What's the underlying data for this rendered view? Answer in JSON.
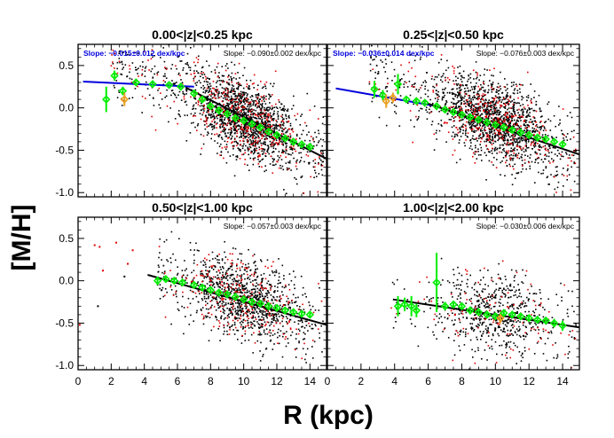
{
  "figure": {
    "ylabel": "[M/H]",
    "xlabel": "R (kpc)",
    "colors": {
      "black_points": "#000000",
      "red_points": "#e00000",
      "green_bins": "#00ee00",
      "orange_bins": "#e8a020",
      "blue_fit": "#0000dd",
      "black_fit": "#000000"
    }
  },
  "chart_data": [
    {
      "type": "scatter",
      "title": "0.00<|z|<0.25 kpc",
      "slope_labels": [
        {
          "text": "Slope: −0.015±0.012 dex/kpc",
          "color": "#0000dd"
        },
        {
          "text": "Slope: −0.090±0.002 dex/kpc",
          "color": "#000000"
        }
      ],
      "xlim": [
        0,
        15
      ],
      "ylim": [
        -1.05,
        0.75
      ],
      "xticks": [
        0,
        2,
        4,
        6,
        8,
        10,
        12,
        14
      ],
      "yticks": [
        -1.0,
        -0.5,
        0.0,
        0.5
      ],
      "show_xticklabels": false,
      "show_yticklabels": true,
      "cloud": {
        "xmin": 2.0,
        "xmax": 14.8,
        "center": 10.0,
        "ymean_at_center": -0.12,
        "slope": -0.09,
        "scatter": 0.22,
        "n_black": 1700,
        "n_red": 420
      },
      "fits": [
        {
          "color": "#0000dd",
          "points": [
            [
              0.3,
              0.31
            ],
            [
              7.0,
              0.25
            ]
          ]
        },
        {
          "color": "#000000",
          "points": [
            [
              6.5,
              0.24
            ],
            [
              15.0,
              -0.6
            ]
          ]
        }
      ],
      "bins": [
        {
          "x": 1.7,
          "y": 0.1,
          "err": 0.15,
          "color": "#00ee00"
        },
        {
          "x": 2.2,
          "y": 0.38,
          "err": 0.06,
          "color": "#00ee00"
        },
        {
          "x": 2.7,
          "y": 0.2,
          "err": 0.05,
          "color": "#00ee00"
        },
        {
          "x": 2.8,
          "y": 0.1,
          "err": 0.08,
          "color": "#e8a020"
        },
        {
          "x": 3.5,
          "y": 0.3,
          "err": 0.03,
          "color": "#00ee00"
        },
        {
          "x": 4.5,
          "y": 0.28,
          "err": 0.02,
          "color": "#00ee00"
        },
        {
          "x": 5.5,
          "y": 0.27,
          "err": 0.02,
          "color": "#00ee00"
        },
        {
          "x": 6.2,
          "y": 0.25,
          "err": 0.02,
          "color": "#00ee00"
        },
        {
          "x": 7.0,
          "y": 0.17,
          "err": 0.02,
          "color": "#00ee00"
        },
        {
          "x": 7.5,
          "y": 0.1,
          "err": 0.02,
          "color": "#00ee00"
        },
        {
          "x": 8.0,
          "y": 0.02,
          "err": 0.02,
          "color": "#00ee00"
        },
        {
          "x": 8.5,
          "y": -0.03,
          "err": 0.02,
          "color": "#00ee00"
        },
        {
          "x": 9.0,
          "y": -0.07,
          "err": 0.02,
          "color": "#00ee00"
        },
        {
          "x": 9.5,
          "y": -0.12,
          "err": 0.02,
          "color": "#00ee00"
        },
        {
          "x": 10.0,
          "y": -0.15,
          "err": 0.02,
          "color": "#00ee00"
        },
        {
          "x": 10.5,
          "y": -0.19,
          "err": 0.02,
          "color": "#00ee00"
        },
        {
          "x": 11.0,
          "y": -0.23,
          "err": 0.02,
          "color": "#00ee00"
        },
        {
          "x": 11.5,
          "y": -0.28,
          "err": 0.02,
          "color": "#00ee00"
        },
        {
          "x": 12.0,
          "y": -0.32,
          "err": 0.02,
          "color": "#00ee00"
        },
        {
          "x": 12.5,
          "y": -0.36,
          "err": 0.02,
          "color": "#00ee00"
        },
        {
          "x": 13.0,
          "y": -0.4,
          "err": 0.02,
          "color": "#00ee00"
        },
        {
          "x": 13.5,
          "y": -0.43,
          "err": 0.02,
          "color": "#00ee00"
        },
        {
          "x": 14.0,
          "y": -0.46,
          "err": 0.02,
          "color": "#00ee00"
        }
      ]
    },
    {
      "type": "scatter",
      "title": "0.25<|z|<0.50 kpc",
      "slope_labels": [
        {
          "text": "Slope: −0.036±0.014 dex/kpc",
          "color": "#0000dd"
        },
        {
          "text": "Slope: −0.076±0.003 dex/kpc",
          "color": "#000000"
        }
      ],
      "xlim": [
        0,
        15
      ],
      "ylim": [
        -1.05,
        0.75
      ],
      "xticks": [
        0,
        2,
        4,
        6,
        8,
        10,
        12,
        14
      ],
      "yticks": [
        -1.0,
        -0.5,
        0.0,
        0.5
      ],
      "show_xticklabels": false,
      "show_yticklabels": false,
      "cloud": {
        "xmin": 2.5,
        "xmax": 14.8,
        "center": 10.0,
        "ymean_at_center": -0.16,
        "slope": -0.076,
        "scatter": 0.22,
        "n_black": 1600,
        "n_red": 380
      },
      "fits": [
        {
          "color": "#0000dd",
          "points": [
            [
              0.5,
              0.23
            ],
            [
              6.5,
              0.02
            ]
          ]
        },
        {
          "color": "#000000",
          "points": [
            [
              6.0,
              0.05
            ],
            [
              15.0,
              -0.55
            ]
          ]
        }
      ],
      "bins": [
        {
          "x": 2.8,
          "y": 0.22,
          "err": 0.1,
          "color": "#00ee00"
        },
        {
          "x": 3.3,
          "y": 0.15,
          "err": 0.06,
          "color": "#00ee00"
        },
        {
          "x": 3.5,
          "y": 0.08,
          "err": 0.08,
          "color": "#e8a020"
        },
        {
          "x": 3.9,
          "y": 0.12,
          "err": 0.06,
          "color": "#e8a020"
        },
        {
          "x": 4.2,
          "y": 0.28,
          "err": 0.12,
          "color": "#00ee00"
        },
        {
          "x": 4.7,
          "y": 0.1,
          "err": 0.03,
          "color": "#00ee00"
        },
        {
          "x": 5.3,
          "y": 0.08,
          "err": 0.03,
          "color": "#00ee00"
        },
        {
          "x": 5.8,
          "y": 0.06,
          "err": 0.02,
          "color": "#00ee00"
        },
        {
          "x": 6.5,
          "y": 0.02,
          "err": 0.02,
          "color": "#00ee00"
        },
        {
          "x": 7.0,
          "y": -0.02,
          "err": 0.02,
          "color": "#00ee00"
        },
        {
          "x": 7.5,
          "y": -0.05,
          "err": 0.02,
          "color": "#00ee00"
        },
        {
          "x": 8.0,
          "y": -0.08,
          "err": 0.02,
          "color": "#00ee00"
        },
        {
          "x": 8.5,
          "y": -0.11,
          "err": 0.02,
          "color": "#00ee00"
        },
        {
          "x": 9.0,
          "y": -0.14,
          "err": 0.02,
          "color": "#00ee00"
        },
        {
          "x": 9.5,
          "y": -0.17,
          "err": 0.02,
          "color": "#00ee00"
        },
        {
          "x": 10.0,
          "y": -0.2,
          "err": 0.02,
          "color": "#00ee00"
        },
        {
          "x": 10.5,
          "y": -0.23,
          "err": 0.02,
          "color": "#00ee00"
        },
        {
          "x": 11.0,
          "y": -0.26,
          "err": 0.02,
          "color": "#00ee00"
        },
        {
          "x": 11.5,
          "y": -0.29,
          "err": 0.02,
          "color": "#00ee00"
        },
        {
          "x": 12.0,
          "y": -0.32,
          "err": 0.02,
          "color": "#00ee00"
        },
        {
          "x": 12.5,
          "y": -0.35,
          "err": 0.02,
          "color": "#00ee00"
        },
        {
          "x": 13.0,
          "y": -0.37,
          "err": 0.02,
          "color": "#00ee00"
        },
        {
          "x": 13.5,
          "y": -0.4,
          "err": 0.02,
          "color": "#00ee00"
        },
        {
          "x": 14.0,
          "y": -0.43,
          "err": 0.02,
          "color": "#00ee00"
        }
      ]
    },
    {
      "type": "scatter",
      "title": "0.50<|z|<1.00 kpc",
      "slope_labels": [
        {
          "text": "Slope: −0.057±0.003 dex/kpc",
          "color": "#000000"
        }
      ],
      "xlim": [
        0,
        15
      ],
      "ylim": [
        -1.05,
        0.75
      ],
      "xticks": [
        0,
        2,
        4,
        6,
        8,
        10,
        12,
        14
      ],
      "yticks": [
        -1.0,
        -0.5,
        0.0,
        0.5
      ],
      "show_xticklabels": true,
      "show_yticklabels": true,
      "cloud": {
        "xmin": 4.8,
        "xmax": 14.8,
        "center": 10.0,
        "ymean_at_center": -0.22,
        "slope": -0.057,
        "scatter": 0.22,
        "n_black": 1100,
        "n_red": 260
      },
      "extra_red_points": [
        [
          0.1,
          -0.52
        ],
        [
          1.0,
          0.42
        ],
        [
          1.3,
          0.4
        ],
        [
          1.5,
          0.12
        ],
        [
          2.3,
          0.45
        ],
        [
          3.0,
          0.2
        ],
        [
          3.3,
          0.36
        ]
      ],
      "extra_black_points": [
        [
          1.2,
          -0.3
        ],
        [
          2.8,
          0.05
        ]
      ],
      "fits": [
        {
          "color": "#000000",
          "points": [
            [
              4.2,
              0.07
            ],
            [
              15.0,
              -0.52
            ]
          ]
        }
      ],
      "bins": [
        {
          "x": 4.8,
          "y": 0.0,
          "err": 0.05,
          "color": "#00ee00"
        },
        {
          "x": 5.3,
          "y": 0.02,
          "err": 0.04,
          "color": "#00ee00"
        },
        {
          "x": 5.8,
          "y": 0.0,
          "err": 0.03,
          "color": "#00ee00"
        },
        {
          "x": 6.3,
          "y": -0.02,
          "err": 0.03,
          "color": "#00ee00"
        },
        {
          "x": 7.0,
          "y": -0.05,
          "err": 0.02,
          "color": "#00ee00"
        },
        {
          "x": 7.5,
          "y": -0.08,
          "err": 0.02,
          "color": "#00ee00"
        },
        {
          "x": 8.0,
          "y": -0.11,
          "err": 0.02,
          "color": "#00ee00"
        },
        {
          "x": 8.5,
          "y": -0.14,
          "err": 0.02,
          "color": "#00ee00"
        },
        {
          "x": 9.0,
          "y": -0.16,
          "err": 0.02,
          "color": "#00ee00"
        },
        {
          "x": 9.5,
          "y": -0.19,
          "err": 0.02,
          "color": "#00ee00"
        },
        {
          "x": 10.0,
          "y": -0.22,
          "err": 0.02,
          "color": "#00ee00"
        },
        {
          "x": 10.5,
          "y": -0.25,
          "err": 0.02,
          "color": "#00ee00"
        },
        {
          "x": 11.0,
          "y": -0.27,
          "err": 0.02,
          "color": "#00ee00"
        },
        {
          "x": 11.5,
          "y": -0.3,
          "err": 0.02,
          "color": "#00ee00"
        },
        {
          "x": 12.0,
          "y": -0.32,
          "err": 0.02,
          "color": "#00ee00"
        },
        {
          "x": 12.5,
          "y": -0.35,
          "err": 0.02,
          "color": "#00ee00"
        },
        {
          "x": 13.0,
          "y": -0.37,
          "err": 0.02,
          "color": "#00ee00"
        },
        {
          "x": 13.5,
          "y": -0.39,
          "err": 0.03,
          "color": "#00ee00"
        },
        {
          "x": 14.0,
          "y": -0.4,
          "err": 0.03,
          "color": "#00ee00"
        }
      ]
    },
    {
      "type": "scatter",
      "title": "1.00<|z|<2.00 kpc",
      "slope_labels": [
        {
          "text": "Slope: −0.030±0.006 dex/kpc",
          "color": "#000000"
        }
      ],
      "xlim": [
        0,
        15
      ],
      "ylim": [
        -1.05,
        0.75
      ],
      "xticks": [
        0,
        2,
        4,
        6,
        8,
        10,
        12,
        14
      ],
      "yticks": [
        -1.0,
        -0.5,
        0.0,
        0.5
      ],
      "show_xticklabels": true,
      "show_yticklabels": false,
      "cloud": {
        "xmin": 3.8,
        "xmax": 14.8,
        "center": 10.0,
        "ymean_at_center": -0.4,
        "slope": -0.03,
        "scatter": 0.23,
        "n_black": 650,
        "n_red": 120
      },
      "fits": [
        {
          "color": "#000000",
          "points": [
            [
              3.9,
              -0.22
            ],
            [
              15.0,
              -0.55
            ]
          ]
        }
      ],
      "bins": [
        {
          "x": 4.2,
          "y": -0.3,
          "err": 0.12,
          "color": "#00ee00"
        },
        {
          "x": 4.6,
          "y": -0.28,
          "err": 0.08,
          "color": "#00ee00"
        },
        {
          "x": 5.0,
          "y": -0.3,
          "err": 0.12,
          "color": "#00ee00"
        },
        {
          "x": 5.3,
          "y": -0.35,
          "err": 0.08,
          "color": "#00ee00"
        },
        {
          "x": 6.5,
          "y": -0.02,
          "err": 0.35,
          "color": "#00ee00"
        },
        {
          "x": 7.0,
          "y": -0.3,
          "err": 0.05,
          "color": "#00ee00"
        },
        {
          "x": 7.5,
          "y": -0.28,
          "err": 0.04,
          "color": "#00ee00"
        },
        {
          "x": 8.0,
          "y": -0.3,
          "err": 0.04,
          "color": "#00ee00"
        },
        {
          "x": 8.5,
          "y": -0.35,
          "err": 0.03,
          "color": "#00ee00"
        },
        {
          "x": 9.0,
          "y": -0.37,
          "err": 0.03,
          "color": "#00ee00"
        },
        {
          "x": 9.5,
          "y": -0.4,
          "err": 0.03,
          "color": "#00ee00"
        },
        {
          "x": 10.0,
          "y": -0.42,
          "err": 0.03,
          "color": "#00ee00"
        },
        {
          "x": 10.3,
          "y": -0.44,
          "err": 0.06,
          "color": "#e8a020"
        },
        {
          "x": 10.5,
          "y": -0.38,
          "err": 0.03,
          "color": "#00ee00"
        },
        {
          "x": 11.0,
          "y": -0.4,
          "err": 0.03,
          "color": "#00ee00"
        },
        {
          "x": 11.5,
          "y": -0.42,
          "err": 0.03,
          "color": "#00ee00"
        },
        {
          "x": 12.0,
          "y": -0.44,
          "err": 0.03,
          "color": "#00ee00"
        },
        {
          "x": 12.5,
          "y": -0.46,
          "err": 0.03,
          "color": "#00ee00"
        },
        {
          "x": 13.0,
          "y": -0.47,
          "err": 0.04,
          "color": "#00ee00"
        },
        {
          "x": 13.5,
          "y": -0.5,
          "err": 0.05,
          "color": "#00ee00"
        },
        {
          "x": 14.0,
          "y": -0.53,
          "err": 0.06,
          "color": "#00ee00"
        }
      ]
    }
  ]
}
